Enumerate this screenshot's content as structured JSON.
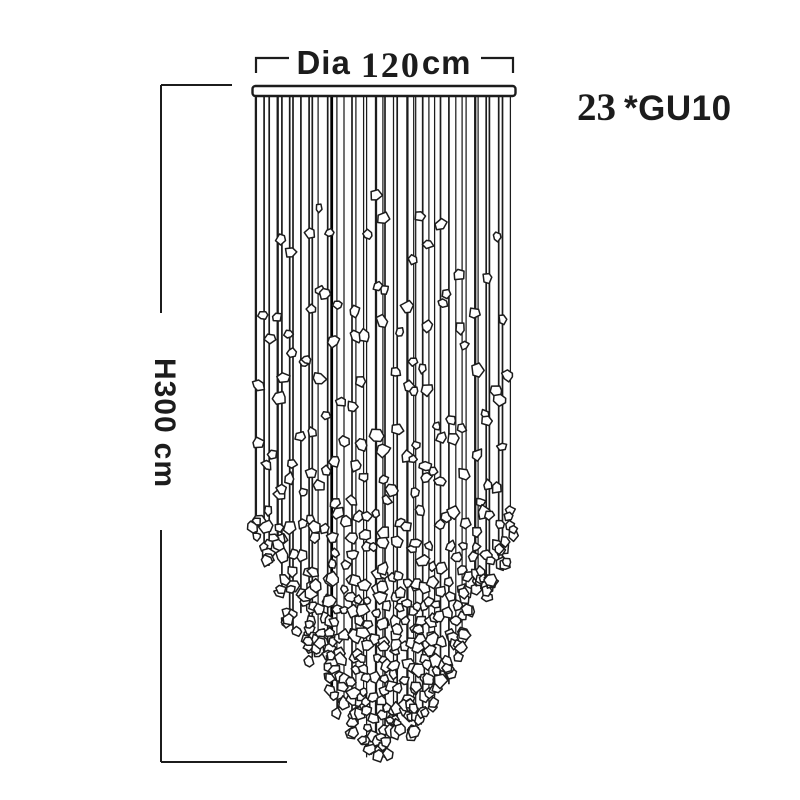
{
  "background": "#ffffff",
  "ink": "#1c1c1c",
  "labels": {
    "diameter": {
      "prefix": "Dia",
      "value": "120",
      "unit": "cm"
    },
    "height": {
      "value": "H300",
      "unit": "cm"
    },
    "bulbs": {
      "count": "23",
      "spec": "*GU10"
    }
  },
  "figure": {
    "type": "crystal-rain-chandelier",
    "wire_count": 42
  }
}
